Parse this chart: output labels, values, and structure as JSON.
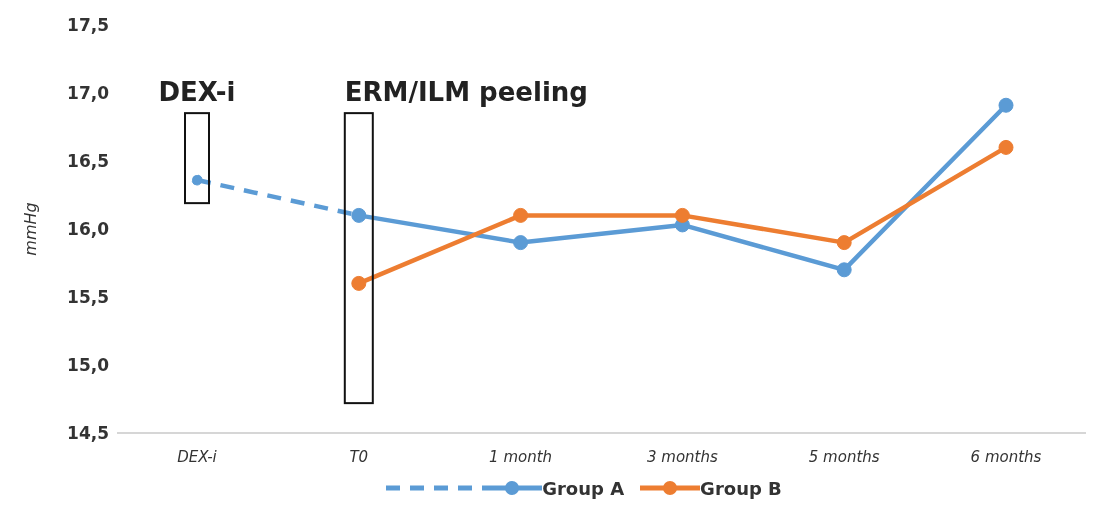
{
  "chart_data": {
    "type": "line",
    "ylabel": "mmHg",
    "categories": [
      "DEX-i",
      "T0",
      "1 month",
      "3 months",
      "5 months",
      "6 months"
    ],
    "series": [
      {
        "color": "#5b9bd5",
        "line_style": "dashed",
        "values": [
          16.36,
          16.1,
          null,
          null,
          null,
          null
        ]
      },
      {
        "name": "Group A",
        "color": "#5b9bd5",
        "line_style": "solid",
        "values": [
          null,
          16.1,
          15.9,
          16.03,
          15.7,
          16.91
        ]
      },
      {
        "name": "Group B",
        "color": "#ed7d31",
        "line_style": "solid",
        "values": [
          null,
          15.6,
          16.1,
          16.1,
          15.9,
          16.6
        ]
      }
    ],
    "ylim": [
      14.5,
      17.5
    ],
    "yticks": [
      {
        "value": 14.5,
        "label": "14,5"
      },
      {
        "value": 15,
        "label": "15,0"
      },
      {
        "value": 15.5,
        "label": "15,5"
      },
      {
        "value": 16,
        "label": "16,0"
      },
      {
        "value": 16.5,
        "label": "16,5"
      },
      {
        "value": 17,
        "label": "17,0"
      },
      {
        "value": 17.5,
        "label": "17,5"
      }
    ],
    "annotations": [
      "DEX-i",
      "ERM/ILM peeling"
    ],
    "marker": "circle",
    "grid": false,
    "legend": "bottom"
  }
}
